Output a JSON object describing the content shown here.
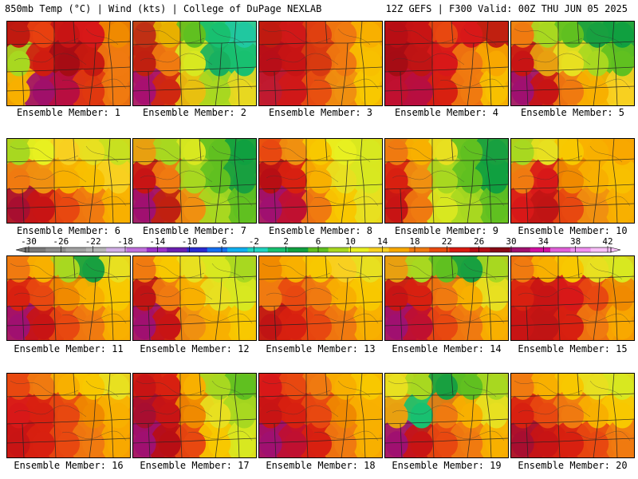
{
  "header": {
    "left": "850mb Temp (°C) | Wind (kts) | College of DuPage NEXLAB",
    "right": "12Z GEFS | F300 Valid: 00Z THU JUN 05 2025"
  },
  "colorbar": {
    "labels": [
      "-30",
      "-26",
      "-22",
      "-18",
      "-14",
      "-10",
      "-6",
      "-2",
      "2",
      "6",
      "10",
      "14",
      "18",
      "22",
      "26",
      "30",
      "34",
      "38",
      "42"
    ],
    "colors": [
      "#7a7a7a",
      "#8e8e8e",
      "#a2a2a2",
      "#b6b6b6",
      "#d2b0e6",
      "#c070dc",
      "#9a32c8",
      "#6a1fb0",
      "#2a2ad0",
      "#1570f0",
      "#10b0f0",
      "#20d4c0",
      "#18c070",
      "#10a040",
      "#60c020",
      "#a8d820",
      "#e8f020",
      "#f8d020",
      "#f8a800",
      "#f07a10",
      "#e84a10",
      "#d81a10",
      "#b40c14",
      "#880a14",
      "#a01070",
      "#d010a0",
      "#e060d8",
      "#f090f0",
      "#f8c0f8"
    ]
  },
  "members": [
    {
      "label": "Ensemble Member: 1",
      "colors": [
        "#c01a10",
        "#e8400f",
        "#c81414",
        "#d81818",
        "#f08a00",
        "#a8d820",
        "#d01c10",
        "#a60c14",
        "#c81a10",
        "#f07a10",
        "#f8b000",
        "#a0106a",
        "#b80e40",
        "#e0380f",
        "#f07a10"
      ]
    },
    {
      "label": "Ensemble Member: 2",
      "colors": [
        "#c03014",
        "#e8b000",
        "#60c020",
        "#18c070",
        "#20c8a0",
        "#c02010",
        "#f07a10",
        "#d8e820",
        "#18b060",
        "#18c070",
        "#a81070",
        "#d02810",
        "#e8c010",
        "#a8d820",
        "#e8d820"
      ]
    },
    {
      "label": "Ensemble Member: 3",
      "colors": [
        "#c01a10",
        "#d01818",
        "#e04010",
        "#f07a10",
        "#f8b000",
        "#b80e18",
        "#c81414",
        "#d83a10",
        "#f07a10",
        "#f8c000",
        "#c01a30",
        "#d01818",
        "#e85010",
        "#f09010",
        "#f8c800"
      ]
    },
    {
      "label": "Ensemble Member: 4",
      "colors": [
        "#b80e14",
        "#c81414",
        "#e84810",
        "#d81818",
        "#c02010",
        "#a60c14",
        "#c01414",
        "#d81818",
        "#f07a10",
        "#f8a800",
        "#c01030",
        "#b80e40",
        "#d82010",
        "#f07a10",
        "#f8c000"
      ]
    },
    {
      "label": "Ensemble Member: 5",
      "colors": [
        "#f07a10",
        "#a8d820",
        "#60c020",
        "#18a040",
        "#10a040",
        "#c81414",
        "#e8a010",
        "#e8e020",
        "#a8d820",
        "#60c020",
        "#a01070",
        "#c81414",
        "#f07a10",
        "#f8b000",
        "#f8d020"
      ]
    },
    {
      "label": "Ensemble Member: 6",
      "colors": [
        "#a8d820",
        "#e8f020",
        "#f8d020",
        "#e8e020",
        "#c8e020",
        "#f07a10",
        "#f09010",
        "#f8b000",
        "#f8c000",
        "#f8d020",
        "#a80e30",
        "#c81414",
        "#e84810",
        "#f07a10",
        "#f8b000"
      ]
    },
    {
      "label": "Ensemble Member: 7",
      "colors": [
        "#e8a010",
        "#a8d820",
        "#d8e820",
        "#60c020",
        "#10a040",
        "#c81414",
        "#f07a10",
        "#a8d820",
        "#60c020",
        "#18a040",
        "#a01070",
        "#c02010",
        "#f09010",
        "#a8d820",
        "#60c020"
      ]
    },
    {
      "label": "Ensemble Member: 8",
      "colors": [
        "#e84810",
        "#f09010",
        "#f8c800",
        "#e8f020",
        "#d8e820",
        "#b80e14",
        "#d82010",
        "#f8b000",
        "#e8e020",
        "#d8e820",
        "#a01070",
        "#c01030",
        "#f07a10",
        "#f8c800",
        "#e8e020"
      ]
    },
    {
      "label": "Ensemble Member: 9",
      "colors": [
        "#f07a10",
        "#f8b000",
        "#e8e020",
        "#60c020",
        "#18a040",
        "#d82010",
        "#f09010",
        "#a8d820",
        "#60c020",
        "#10a040",
        "#c81414",
        "#f07a10",
        "#d8e820",
        "#a8d820",
        "#60c020"
      ]
    },
    {
      "label": "Ensemble Member: 10",
      "colors": [
        "#a8d820",
        "#e8e020",
        "#f8c800",
        "#f8b000",
        "#f8a800",
        "#f07a10",
        "#d81818",
        "#f08a00",
        "#f8b000",
        "#f8c000",
        "#d81818",
        "#c01414",
        "#e84810",
        "#f09010",
        "#f8b000"
      ]
    },
    {
      "label": "Ensemble Member: 11",
      "colors": [
        "#f07a10",
        "#f8b000",
        "#a8d820",
        "#18a040",
        "#e8e020",
        "#d82010",
        "#e84810",
        "#f08a00",
        "#f8b000",
        "#f8c800",
        "#a01070",
        "#c81414",
        "#e84810",
        "#f07a10",
        "#f8b000"
      ]
    },
    {
      "label": "Ensemble Member: 12",
      "colors": [
        "#f07a10",
        "#f8c800",
        "#e8e020",
        "#d8e820",
        "#a8d820",
        "#c01414",
        "#f07a10",
        "#f8b000",
        "#e8e020",
        "#d8e820",
        "#a01070",
        "#c81414",
        "#f09010",
        "#f8b000",
        "#f8c800"
      ]
    },
    {
      "label": "Ensemble Member: 13",
      "colors": [
        "#f08a00",
        "#f8b000",
        "#f8c800",
        "#f8d020",
        "#e8e020",
        "#f07a10",
        "#e84810",
        "#f07a10",
        "#f8b000",
        "#f8c800",
        "#c01414",
        "#d82010",
        "#e84810",
        "#f07a10",
        "#f8b000"
      ]
    },
    {
      "label": "Ensemble Member: 14",
      "colors": [
        "#e8a010",
        "#a8d820",
        "#60c020",
        "#18a040",
        "#a8d820",
        "#c81414",
        "#d82010",
        "#f07a10",
        "#f8b000",
        "#e8e020",
        "#a01070",
        "#c01030",
        "#e84810",
        "#f07a10",
        "#f8b000"
      ]
    },
    {
      "label": "Ensemble Member: 15",
      "colors": [
        "#f07a10",
        "#f8b000",
        "#f8c800",
        "#e8e020",
        "#d8e820",
        "#d82010",
        "#c81414",
        "#d81818",
        "#e84810",
        "#f08a00",
        "#c81414",
        "#c01414",
        "#d82010",
        "#f07a10",
        "#f8a800"
      ]
    },
    {
      "label": "Ensemble Member: 16",
      "colors": [
        "#e84810",
        "#f07a10",
        "#f8b000",
        "#f8c800",
        "#e8e020",
        "#d81818",
        "#d82010",
        "#e84810",
        "#f08a00",
        "#f8b000",
        "#c81414",
        "#d82010",
        "#e84810",
        "#f07a10",
        "#f8a800"
      ]
    },
    {
      "label": "Ensemble Member: 17",
      "colors": [
        "#c81414",
        "#d82010",
        "#f8b000",
        "#a8d820",
        "#60c020",
        "#a80e30",
        "#c81414",
        "#f08a00",
        "#e8e020",
        "#a8d820",
        "#a01070",
        "#b80e14",
        "#e84810",
        "#f8c800",
        "#d8e820"
      ]
    },
    {
      "label": "Ensemble Member: 18",
      "colors": [
        "#d81818",
        "#e84810",
        "#f07a10",
        "#f8b000",
        "#f8c800",
        "#c81414",
        "#d82010",
        "#e84810",
        "#f08a00",
        "#f8b000",
        "#a01070",
        "#c01030",
        "#d82010",
        "#f07a10",
        "#f8b000"
      ]
    },
    {
      "label": "Ensemble Member: 19",
      "colors": [
        "#e8e020",
        "#a8d820",
        "#18a040",
        "#60c020",
        "#a8d820",
        "#e8a010",
        "#18c070",
        "#f07a10",
        "#f8b000",
        "#e8e020",
        "#a01070",
        "#c81414",
        "#e84810",
        "#f07a10",
        "#f8b000"
      ]
    },
    {
      "label": "Ensemble Member: 20",
      "colors": [
        "#f07a10",
        "#f8b000",
        "#f8c800",
        "#e8e020",
        "#d8e820",
        "#d82010",
        "#e84810",
        "#f07a10",
        "#f8b000",
        "#f8c800",
        "#a80e30",
        "#c81414",
        "#d82010",
        "#e84810",
        "#f07a10"
      ]
    }
  ]
}
